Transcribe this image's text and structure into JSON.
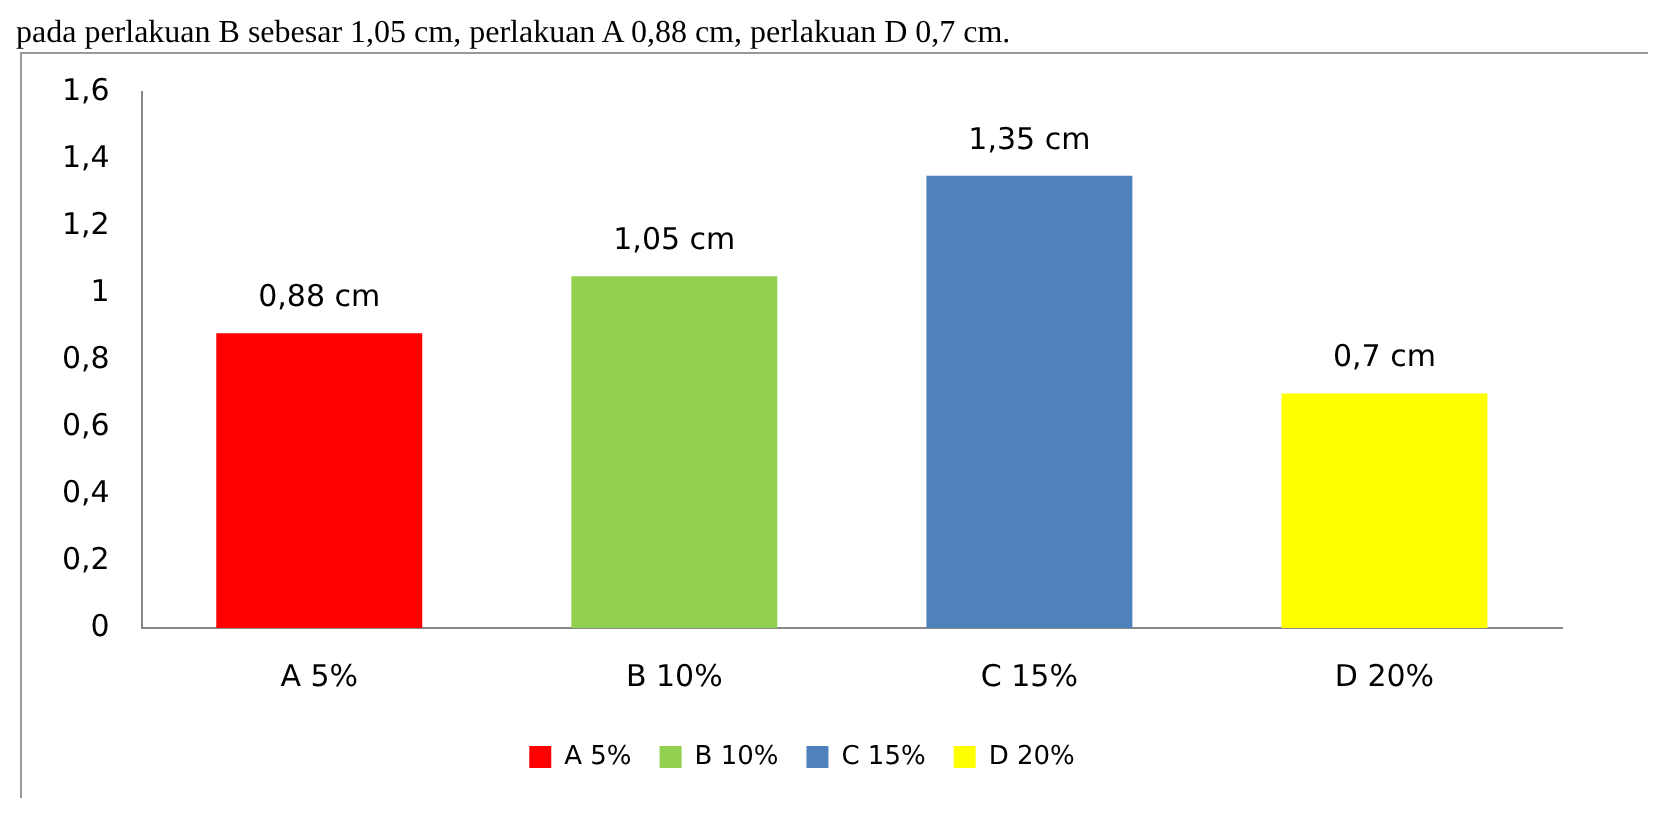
{
  "chart_data": {
    "type": "bar",
    "annotations": [
      "pada perlakuan B sebesar 1,05 cm, perlakuan A 0,88 cm, perlakuan D 0,7 cm."
    ],
    "categories": [
      "A 5%",
      "B 10%",
      "C 15%",
      "D 20%"
    ],
    "series": [
      {
        "name": "A 5%",
        "color": "#ff0000",
        "values": [
          0.88,
          null,
          null,
          null
        ],
        "value_labels": [
          "0,88 cm",
          null,
          null,
          null
        ]
      },
      {
        "name": "B 10%",
        "color": "#92d050",
        "values": [
          null,
          1.05,
          null,
          null
        ],
        "value_labels": [
          null,
          "1,05 cm",
          null,
          null
        ]
      },
      {
        "name": "C 15%",
        "color": "#4f81bd",
        "values": [
          null,
          null,
          1.35,
          null
        ],
        "value_labels": [
          null,
          null,
          "1,35 cm",
          null
        ]
      },
      {
        "name": "D 20%",
        "color": "#ffff00",
        "values": [
          null,
          null,
          null,
          0.7
        ],
        "value_labels": [
          null,
          null,
          null,
          "0,7 cm"
        ]
      }
    ],
    "ylim": [
      0,
      1.6
    ],
    "yticks": [
      0,
      {
        "value": 0.2,
        "label": "0,2"
      },
      {
        "value": 0.4,
        "label": "0,4"
      },
      {
        "value": 0.6,
        "label": "0,6"
      },
      {
        "value": 0.8,
        "label": "0,8"
      },
      1,
      {
        "value": 1.2,
        "label": "1,2"
      },
      {
        "value": 1.4,
        "label": "1,4"
      },
      {
        "value": 1.6,
        "label": "1,6"
      }
    ],
    "grid": false,
    "legend": "bottom"
  }
}
